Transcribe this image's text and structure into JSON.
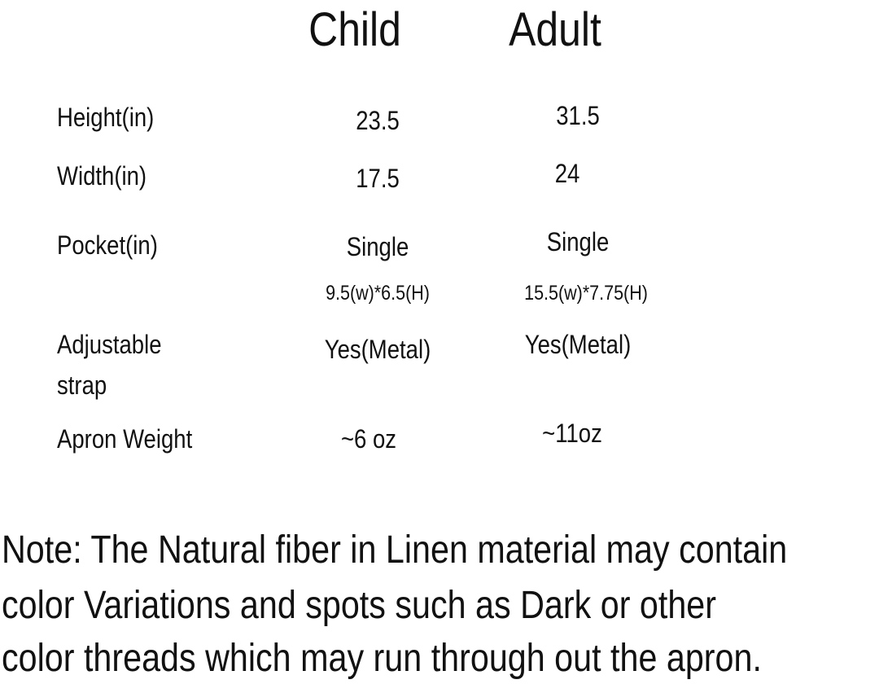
{
  "headers": {
    "child": "Child",
    "adult": "Adult"
  },
  "rows": [
    {
      "label": "Height(in)",
      "child": "23.5",
      "adult": "31.5"
    },
    {
      "label": "Width(in)",
      "child": "17.5",
      "adult": "24"
    },
    {
      "label": "Pocket(in)",
      "child": "Single",
      "adult": "Single",
      "child_dim": "9.5(w)*6.5(H)",
      "adult_dim": "15.5(w)*7.75(H)"
    },
    {
      "label": "Adjustable",
      "label2": "strap",
      "child": "Yes(Metal)",
      "adult": "Yes(Metal)"
    },
    {
      "label": "Apron Weight",
      "child": "~6 oz",
      "adult": "~11oz"
    }
  ],
  "note": [
    "Note: The Natural fiber in Linen material may contain",
    "color Variations and spots such as Dark or other",
    "color threads which may run through out the apron."
  ]
}
